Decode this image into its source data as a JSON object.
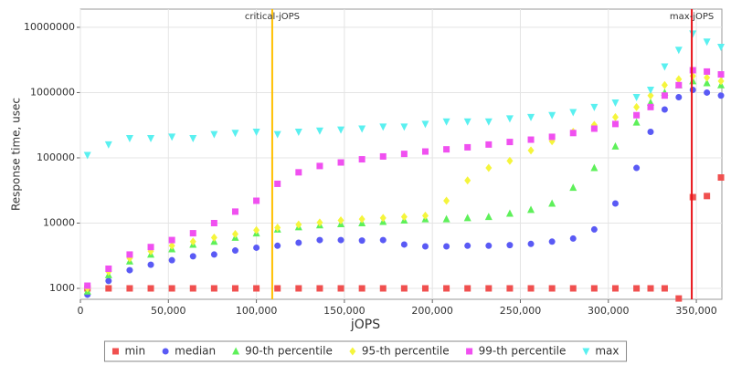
{
  "chart_data": {
    "type": "scatter",
    "x_label": "jOPS",
    "y_label": "Response time, usec",
    "xlim": [
      0,
      364500
    ],
    "ylim": [
      680,
      19000000
    ],
    "log_y": true,
    "grid": true,
    "xticks": [
      0,
      {
        "value": 50000,
        "label": "50,000"
      },
      {
        "value": 100000,
        "label": "100,000"
      },
      {
        "value": 150000,
        "label": "150,000"
      },
      {
        "value": 200000,
        "label": "200,000"
      },
      {
        "value": 250000,
        "label": "250,000"
      },
      {
        "value": 300000,
        "label": "300,000"
      },
      {
        "value": 350000,
        "label": "350,000"
      }
    ],
    "yticks": [
      1000,
      10000,
      100000,
      1000000,
      10000000
    ],
    "annotations": [
      {
        "label": "critical-jOPS",
        "x": 109000,
        "color": "#ffc000"
      },
      {
        "label": "max-jOPS",
        "x": 347400,
        "color": "#e8141a"
      }
    ],
    "legend": "bottom",
    "x": [
      4000,
      16000,
      28000,
      40000,
      52000,
      64000,
      76000,
      88000,
      100000,
      112000,
      124000,
      136000,
      148000,
      160000,
      172000,
      184000,
      196000,
      208000,
      220000,
      232000,
      244000,
      256000,
      268000,
      280000,
      292000,
      304000,
      316000,
      324000,
      332000,
      340000,
      348000,
      356000,
      364000
    ],
    "series": [
      {
        "name": "min",
        "color": "#f0504f",
        "marker": "square",
        "values": [
          1000,
          1000,
          1000,
          1000,
          1000,
          1000,
          1000,
          1000,
          1000,
          1000,
          1000,
          1000,
          1000,
          1000,
          1000,
          1000,
          1000,
          1000,
          1000,
          1000,
          1000,
          1000,
          1000,
          1000,
          1000,
          1000,
          1000,
          1000,
          1000,
          700,
          25000,
          26000,
          50000
        ]
      },
      {
        "name": "median",
        "color": "#5a5af5",
        "marker": "circle",
        "values": [
          800,
          1300,
          1900,
          2300,
          2700,
          3100,
          3300,
          3800,
          4200,
          4500,
          5000,
          5500,
          5500,
          5400,
          5500,
          4700,
          4400,
          4400,
          4500,
          4500,
          4600,
          4800,
          5200,
          5800,
          8000,
          20000,
          70000,
          250000,
          550000,
          850000,
          1100000,
          1000000,
          900000
        ]
      },
      {
        "name": "90-th percentile",
        "color": "#5ef05a",
        "marker": "triangle",
        "values": [
          900,
          1600,
          2600,
          3300,
          4000,
          4700,
          5200,
          6000,
          7000,
          8000,
          8700,
          9300,
          9700,
          10000,
          10500,
          11000,
          11500,
          11500,
          12000,
          12500,
          14000,
          16000,
          20000,
          35000,
          70000,
          150000,
          350000,
          700000,
          1000000,
          1300000,
          1500000,
          1400000,
          1300000
        ]
      },
      {
        "name": "95-th percentile",
        "color": "#f5f53c",
        "marker": "diamond",
        "values": [
          1000,
          1800,
          2900,
          3700,
          4500,
          5200,
          6000,
          6800,
          7800,
          8500,
          9500,
          10200,
          11000,
          11500,
          12000,
          12500,
          13000,
          22000,
          45000,
          70000,
          90000,
          130000,
          180000,
          250000,
          320000,
          420000,
          600000,
          900000,
          1300000,
          1600000,
          1800000,
          1700000,
          1500000
        ]
      },
      {
        "name": "99-th percentile",
        "color": "#f050f0",
        "marker": "square",
        "values": [
          1100,
          2000,
          3300,
          4300,
          5500,
          7000,
          10000,
          15000,
          22000,
          40000,
          60000,
          75000,
          85000,
          95000,
          105000,
          115000,
          125000,
          135000,
          145000,
          160000,
          175000,
          190000,
          210000,
          240000,
          280000,
          330000,
          450000,
          600000,
          900000,
          1300000,
          2200000,
          2100000,
          1900000
        ]
      },
      {
        "name": "max",
        "color": "#5af0f0",
        "marker": "triangle-down",
        "values": [
          110000,
          160000,
          200000,
          200000,
          210000,
          200000,
          230000,
          240000,
          250000,
          230000,
          250000,
          260000,
          270000,
          280000,
          300000,
          300000,
          330000,
          360000,
          360000,
          360000,
          400000,
          420000,
          450000,
          500000,
          600000,
          700000,
          850000,
          1100000,
          2500000,
          4500000,
          8000000,
          6000000,
          5000000
        ]
      }
    ]
  }
}
